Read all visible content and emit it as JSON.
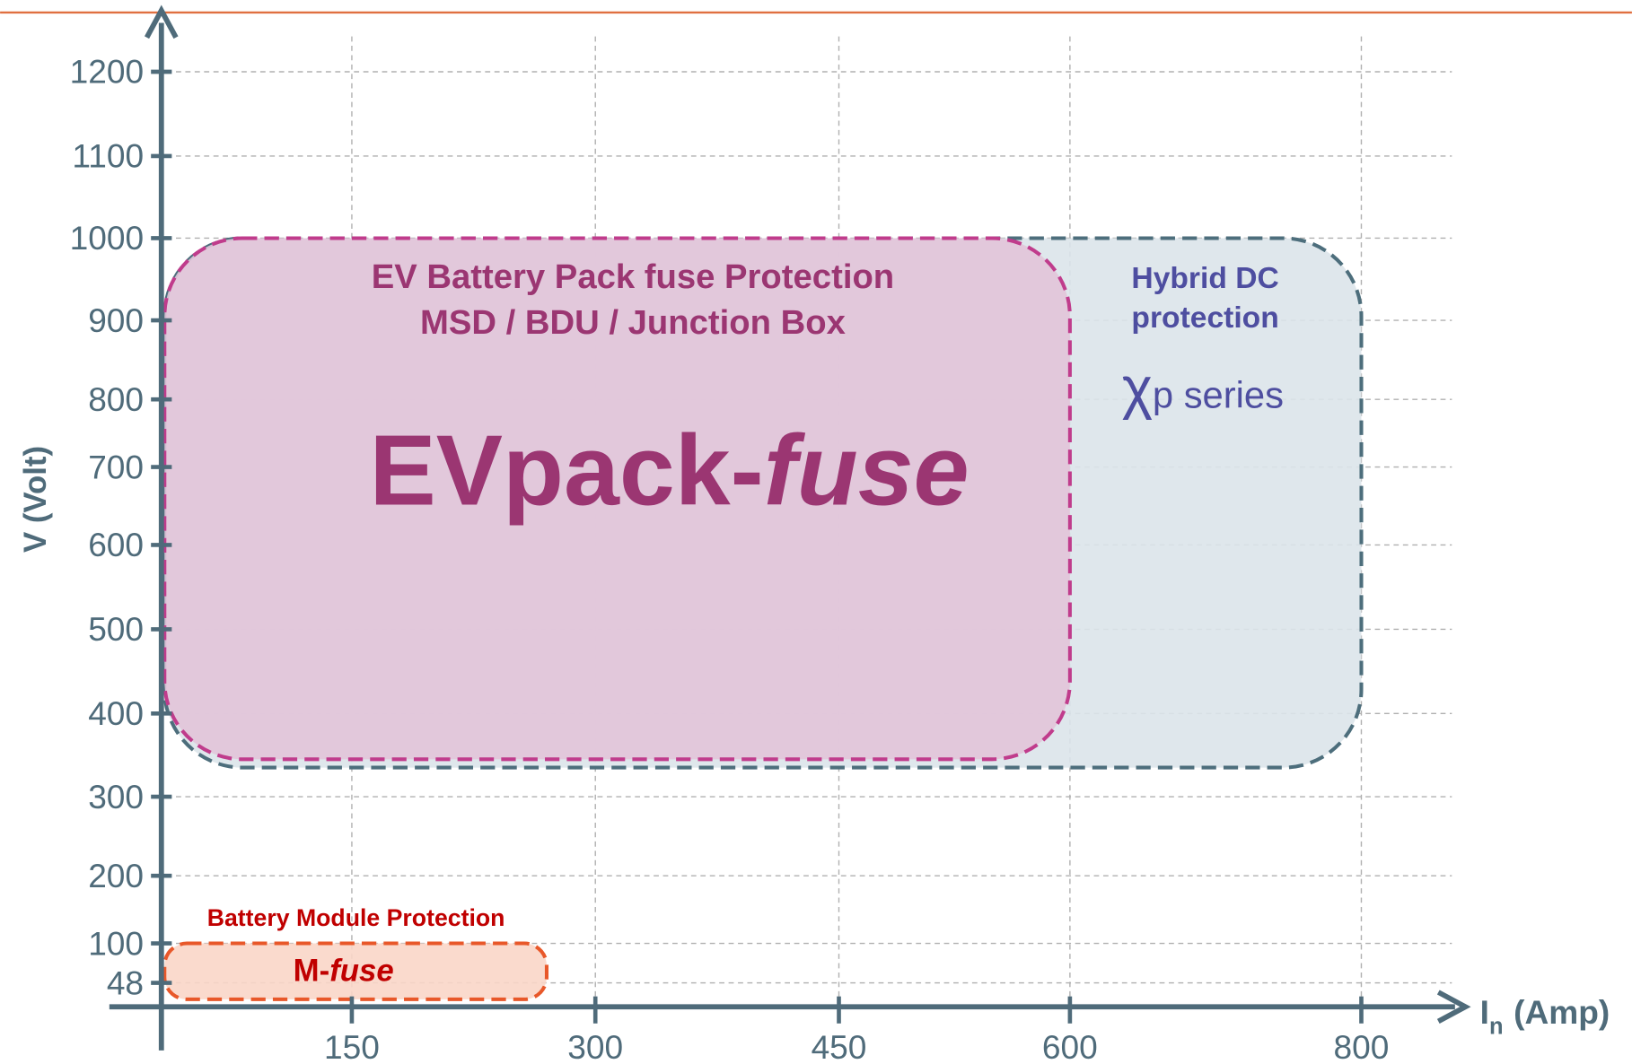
{
  "chart_data": {
    "type": "region",
    "y_label": "V (Volt)",
    "x_label": {
      "main": "I",
      "sub": "n",
      "unit": "(Amp)"
    },
    "xlim": [
      0,
      880
    ],
    "xticks": [
      150,
      300,
      450,
      600,
      800
    ],
    "ylim": [
      0,
      1250
    ],
    "yticks": [
      48,
      100,
      200,
      300,
      400,
      500,
      600,
      700,
      800,
      900,
      1000,
      1100,
      1200
    ],
    "grid": true,
    "regions": [
      {
        "name": "Hybrid DC protection",
        "x": [
          0,
          800
        ],
        "y": [
          335,
          1000
        ],
        "fill": "#dbe4ea",
        "stroke": "#4d6e7c",
        "labels": [
          "Hybrid DC",
          "protection"
        ],
        "product": [
          "χ",
          "p series"
        ]
      },
      {
        "name": "EV Battery Pack fuse Protection",
        "x": [
          0,
          600
        ],
        "y": [
          345,
          1000
        ],
        "fill": "#e2c4d9",
        "stroke": "#c03c8c",
        "labels": [
          "EV Battery Pack fuse Protection",
          "MSD / BDU / Junction Box"
        ],
        "product": [
          "EVpack-",
          "fuse"
        ]
      },
      {
        "name": "Battery Module Protection",
        "x": [
          0,
          270
        ],
        "y": [
          15,
          100
        ],
        "fill": "#f9d6c8",
        "stroke": "#e8582a",
        "labels": [
          "Battery Module Protection"
        ],
        "product": [
          "M-",
          "fuse"
        ]
      }
    ]
  }
}
